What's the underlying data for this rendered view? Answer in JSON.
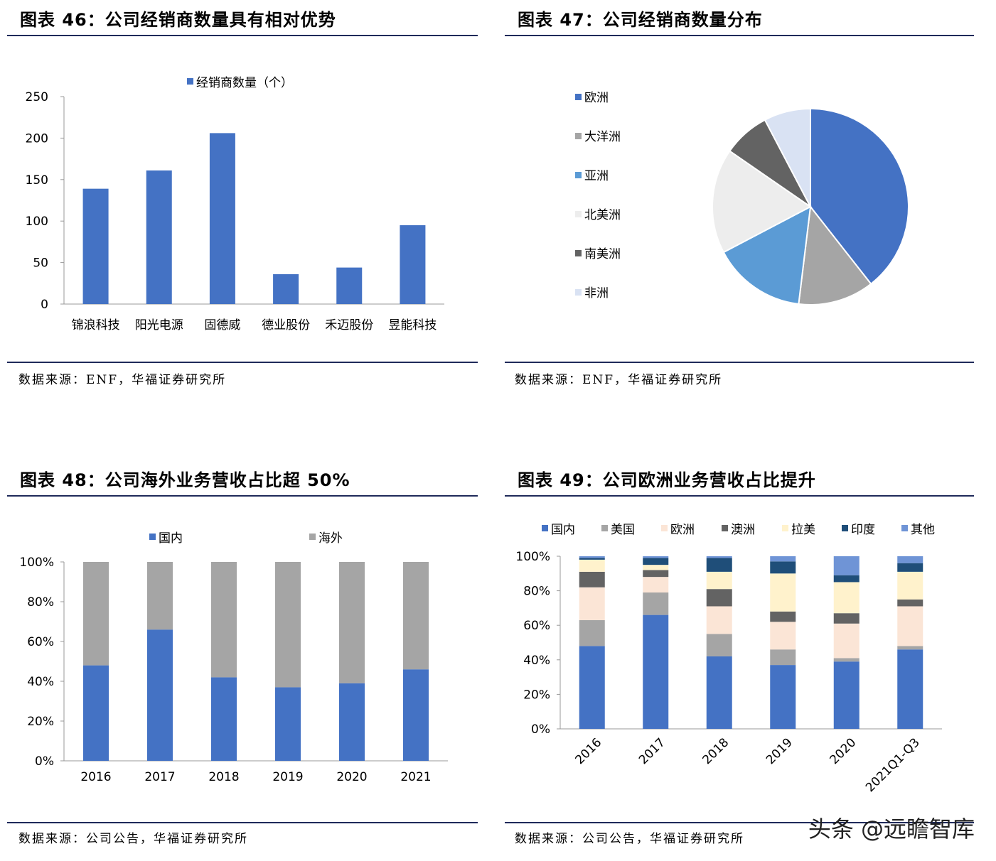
{
  "panels": [
    {
      "title": "图表 46：公司经销商数量具有相对优势",
      "source": "数据来源：ENF，华福证券研究所"
    },
    {
      "title": "图表 47：公司经销商数量分布",
      "source": "数据来源：ENF，华福证券研究所"
    },
    {
      "title": "图表 48：公司海外业务营收占比超 50%",
      "source": "数据来源：公司公告，华福证券研究所"
    },
    {
      "title": "图表 49：公司欧洲业务营收占比提升",
      "source": "数据来源：公司公告，华福证券研究所"
    }
  ],
  "watermark": "头条 @远瞻智库",
  "colors": {
    "blue": "#4472c4",
    "gray": "#a5a5a5",
    "lightblue": "#5b9bd5",
    "whitegray": "#ededed",
    "darkgray": "#636363",
    "paleblue": "#d9e2f3",
    "peach": "#fbe5d6",
    "cream": "#fff2cc",
    "navy": "#1f4e79",
    "midblue": "#6f94d6",
    "rule": "#1f2a5a"
  },
  "chart_data": [
    {
      "type": "bar",
      "categories": [
        "锦浪科技",
        "阳光电源",
        "固德威",
        "德业股份",
        "禾迈股份",
        "昱能科技"
      ],
      "series": [
        {
          "name": "经销商数量（个）",
          "values": [
            139,
            161,
            206,
            36,
            44,
            95
          ]
        }
      ],
      "ylim": [
        0,
        250
      ],
      "yticks": [
        "0",
        "50",
        "100",
        "150",
        "200",
        "250"
      ],
      "legend": "top"
    },
    {
      "type": "pie",
      "labels": [
        "欧洲",
        "大洋洲",
        "亚洲",
        "北美洲",
        "南美洲",
        "非洲"
      ],
      "values": [
        41,
        13,
        16,
        18,
        8,
        8
      ],
      "legend": "left"
    },
    {
      "type": "bar",
      "stacked": true,
      "categories": [
        "2016",
        "2017",
        "2018",
        "2019",
        "2020",
        "2021"
      ],
      "series": [
        {
          "name": "国内",
          "values": [
            48,
            66,
            42,
            37,
            39,
            46
          ]
        },
        {
          "name": "海外",
          "values": [
            52,
            34,
            58,
            63,
            61,
            54
          ]
        }
      ],
      "ylim": [
        0,
        100
      ],
      "yticks": [
        "0%",
        "20%",
        "40%",
        "60%",
        "80%",
        "100%"
      ],
      "legend": "top"
    },
    {
      "type": "bar",
      "stacked": true,
      "categories": [
        "2016",
        "2017",
        "2018",
        "2019",
        "2020",
        "2021Q1-Q3"
      ],
      "series": [
        {
          "name": "国内",
          "values": [
            48,
            66,
            42,
            37,
            39,
            46
          ]
        },
        {
          "name": "美国",
          "values": [
            15,
            13,
            13,
            9,
            2,
            2
          ]
        },
        {
          "name": "欧洲",
          "values": [
            19,
            9,
            16,
            16,
            20,
            23
          ]
        },
        {
          "name": "澳洲",
          "values": [
            9,
            4,
            10,
            6,
            6,
            4
          ]
        },
        {
          "name": "拉美",
          "values": [
            7,
            3,
            10,
            22,
            18,
            16
          ]
        },
        {
          "name": "印度",
          "values": [
            1,
            4,
            8,
            7,
            4,
            5
          ]
        },
        {
          "name": "其他",
          "values": [
            1,
            1,
            1,
            3,
            11,
            4
          ]
        }
      ],
      "ylim": [
        0,
        100
      ],
      "yticks": [
        "0%",
        "20%",
        "40%",
        "60%",
        "80%",
        "100%"
      ],
      "legend": "top"
    }
  ]
}
